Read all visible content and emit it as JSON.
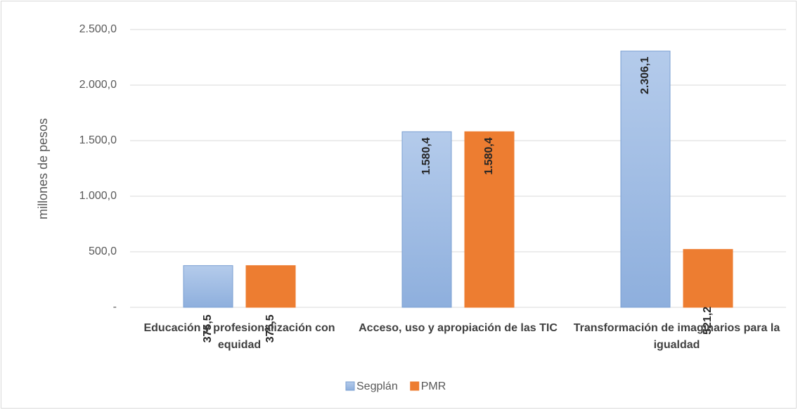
{
  "chart_data": {
    "type": "bar",
    "y_label": "millones de pesos",
    "categories": [
      "Educación y profesionalización con equidad",
      "Acceso, uso y apropiación de las TIC",
      "Transformación de imaginarios para la igualdad"
    ],
    "series": [
      {
        "name": "Segplán",
        "color": "#9dbbe3",
        "values": [
          375.5,
          1580.4,
          2306.1
        ],
        "value_labels": [
          "375,5",
          "1.580,4",
          "2.306,1"
        ]
      },
      {
        "name": "PMR",
        "color": "#ed7d31",
        "values": [
          375.5,
          1580.4,
          521.2
        ],
        "value_labels": [
          "375,5",
          "1.580,4",
          "521,2"
        ]
      }
    ],
    "ylim": [
      0,
      2500
    ],
    "yticks": [
      {
        "value": 0,
        "label": "-"
      },
      {
        "value": 500,
        "label": "500,0"
      },
      {
        "value": 1000,
        "label": "1.000,0"
      },
      {
        "value": 1500,
        "label": "1.500,0"
      },
      {
        "value": 2000,
        "label": "2.000,0"
      },
      {
        "value": 2500,
        "label": "2.500,0"
      }
    ],
    "grid": true,
    "legend": "bottom"
  }
}
